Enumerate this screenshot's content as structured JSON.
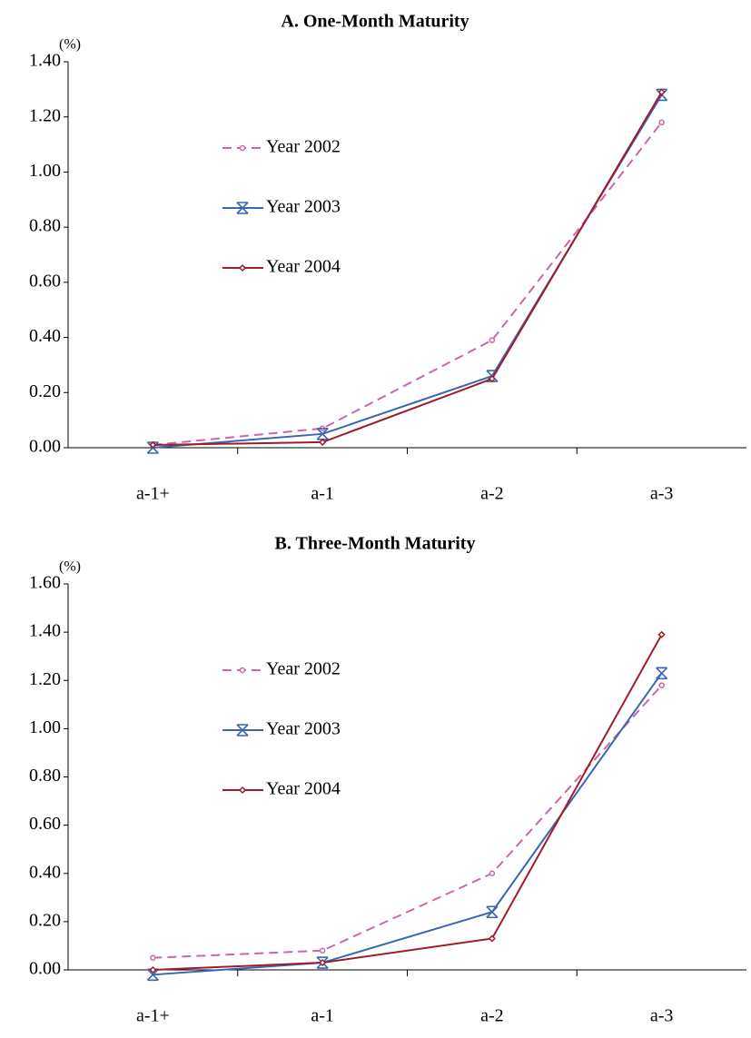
{
  "chart_data": [
    {
      "type": "line",
      "title": "A. One-Month Maturity",
      "y_label": "(%)",
      "categories": [
        "a-1+",
        "a-1",
        "a-2",
        "a-3"
      ],
      "series": [
        {
          "name": "Year 2002",
          "color": "#cc66aa",
          "line_style": "dashed",
          "marker": "circle",
          "values": [
            0.01,
            0.07,
            0.39,
            1.18
          ]
        },
        {
          "name": "Year 2003",
          "color": "#3a67b0",
          "line_style": "solid",
          "marker": "star",
          "values": [
            0.0,
            0.05,
            0.26,
            1.28
          ]
        },
        {
          "name": "Year 2004",
          "color": "#a01c2a",
          "line_style": "solid",
          "marker": "diamond",
          "values": [
            0.01,
            0.02,
            0.25,
            1.29
          ]
        }
      ],
      "ylim": [
        0,
        1.4
      ],
      "yticks": [
        {
          "value": 0,
          "label": "0.00"
        },
        {
          "value": 0.2,
          "label": "0.20"
        },
        {
          "value": 0.4,
          "label": "0.40"
        },
        {
          "value": 0.6,
          "label": "0.60"
        },
        {
          "value": 0.8,
          "label": "0.80"
        },
        {
          "value": 1,
          "label": "1.00"
        },
        {
          "value": 1.2,
          "label": "1.20"
        },
        {
          "value": 1.4,
          "label": "1.40"
        }
      ],
      "grid": false,
      "legend": "upper left"
    },
    {
      "type": "line",
      "title": "B. Three-Month Maturity",
      "y_label": "(%)",
      "categories": [
        "a-1+",
        "a-1",
        "a-2",
        "a-3"
      ],
      "series": [
        {
          "name": "Year 2002",
          "color": "#cc66aa",
          "line_style": "dashed",
          "marker": "circle",
          "values": [
            0.05,
            0.08,
            0.4,
            1.18
          ]
        },
        {
          "name": "Year 2003",
          "color": "#3a67b0",
          "line_style": "solid",
          "marker": "star",
          "values": [
            -0.02,
            0.03,
            0.24,
            1.23
          ]
        },
        {
          "name": "Year 2004",
          "color": "#a01c2a",
          "line_style": "solid",
          "marker": "diamond",
          "values": [
            0.0,
            0.03,
            0.13,
            1.39
          ]
        }
      ],
      "ylim": [
        0,
        1.6
      ],
      "yticks": [
        {
          "value": 0,
          "label": "0.00"
        },
        {
          "value": 0.2,
          "label": "0.20"
        },
        {
          "value": 0.4,
          "label": "0.40"
        },
        {
          "value": 0.6,
          "label": "0.60"
        },
        {
          "value": 0.8,
          "label": "0.80"
        },
        {
          "value": 1,
          "label": "1.00"
        },
        {
          "value": 1.2,
          "label": "1.20"
        },
        {
          "value": 1.4,
          "label": "1.40"
        },
        {
          "value": 1.6,
          "label": "1.60"
        }
      ],
      "grid": false,
      "legend": "upper left"
    }
  ]
}
